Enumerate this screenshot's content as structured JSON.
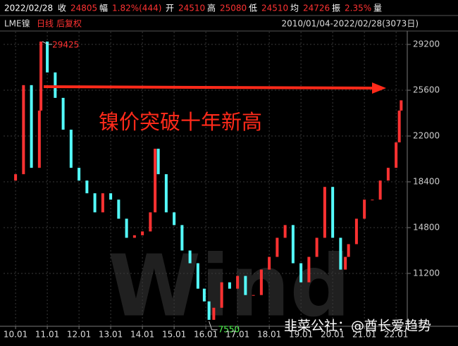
{
  "header": {
    "date": "2022/02/28",
    "items": [
      {
        "label": "收",
        "value": "24805"
      },
      {
        "label": "幅",
        "value": "1.82%(444)"
      },
      {
        "label": "开",
        "value": "24510"
      },
      {
        "label": "高",
        "value": "25080"
      },
      {
        "label": "低",
        "value": "24510"
      },
      {
        "label": "均",
        "value": "24726"
      },
      {
        "label": "振",
        "value": "2.35%"
      }
    ],
    "trailing": "量"
  },
  "chart_data": {
    "type": "candlestick",
    "title": "LME镍",
    "period": "日线",
    "adjust": "后复权",
    "date_range": "2010/01/04-2022/02/28(3073日)",
    "annotation": "镍价突破十年新高",
    "watermark": "Wind",
    "credit": "韭菜公社：@酋长爱趋势",
    "x": [
      2009.75,
      2010.0,
      2010.25,
      2010.5,
      2010.75,
      2010.8,
      2011.0,
      2011.25,
      2011.5,
      2011.75,
      2012.0,
      2012.25,
      2012.5,
      2012.75,
      2013.0,
      2013.25,
      2013.5,
      2013.75,
      2014.0,
      2014.25,
      2014.4,
      2014.5,
      2014.75,
      2015.0,
      2015.25,
      2015.5,
      2015.75,
      2015.95,
      2016.1,
      2016.25,
      2016.5,
      2016.75,
      2017.0,
      2017.25,
      2017.5,
      2017.75,
      2018.0,
      2018.25,
      2018.5,
      2018.75,
      2019.0,
      2019.25,
      2019.5,
      2019.75,
      2020.0,
      2020.25,
      2020.4,
      2020.5,
      2020.75,
      2021.0,
      2021.25,
      2021.5,
      2021.75,
      2022.0,
      2022.1,
      2022.16
    ],
    "values": [
      18500,
      19000,
      26000,
      19500,
      24000,
      29425,
      27000,
      25000,
      22500,
      19500,
      18500,
      17500,
      16000,
      17500,
      17000,
      15500,
      14000,
      14200,
      14500,
      16000,
      21000,
      19000,
      16000,
      15000,
      13000,
      12000,
      10000,
      9000,
      7550,
      8500,
      10500,
      10000,
      11000,
      9500,
      9500,
      11500,
      12500,
      14000,
      15000,
      12000,
      10500,
      12500,
      14000,
      18000,
      14000,
      11500,
      12500,
      13500,
      15500,
      17000,
      17000,
      18500,
      19500,
      21500,
      24000,
      24805
    ],
    "up_color": "#ff3232",
    "down_color": "#54ffff",
    "xlim": [
      2009.62,
      2022.33
    ],
    "ylim": [
      7100,
      30200
    ],
    "xticks": [
      {
        "value": 2010,
        "label": "10.01"
      },
      {
        "value": 2011,
        "label": "11.01"
      },
      {
        "value": 2012,
        "label": "12.01"
      },
      {
        "value": 2013,
        "label": "13.01"
      },
      {
        "value": 2014,
        "label": "14.01"
      },
      {
        "value": 2015,
        "label": "15.01"
      },
      {
        "value": 2016,
        "label": "16.01"
      },
      {
        "value": 2017,
        "label": "17.01"
      },
      {
        "value": 2018,
        "label": "18.01"
      },
      {
        "value": 2019,
        "label": "19.01"
      },
      {
        "value": 2020,
        "label": "20.01"
      },
      {
        "value": 2021,
        "label": "21.01"
      },
      {
        "value": 2022,
        "label": "22.01"
      }
    ],
    "yticks": [
      11200,
      14800,
      18400,
      22000,
      25600,
      29200
    ],
    "grid": true
  }
}
